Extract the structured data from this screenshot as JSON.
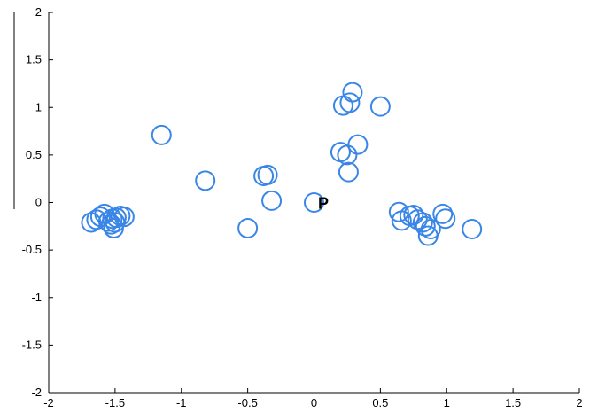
{
  "chart_data": {
    "type": "scatter",
    "title": "",
    "xlabel": "",
    "ylabel": "",
    "xlim": [
      -2,
      2
    ],
    "ylim": [
      -2,
      2
    ],
    "xticks": [
      -2,
      -1.5,
      -1,
      -0.5,
      0,
      0.5,
      1,
      1.5,
      2
    ],
    "yticks": [
      -2,
      -1.5,
      -1,
      -0.5,
      0,
      0.5,
      1,
      1.5,
      2
    ],
    "grid": false,
    "marker": "circle",
    "marker_color": "#3a86e6",
    "points": [
      [
        -1.68,
        -0.21
      ],
      [
        -1.64,
        -0.18
      ],
      [
        -1.61,
        -0.15
      ],
      [
        -1.58,
        -0.12
      ],
      [
        -1.55,
        -0.2
      ],
      [
        -1.53,
        -0.23
      ],
      [
        -1.52,
        -0.17
      ],
      [
        -1.51,
        -0.27
      ],
      [
        -1.5,
        -0.21
      ],
      [
        -1.49,
        -0.16
      ],
      [
        -1.46,
        -0.14
      ],
      [
        -1.43,
        -0.15
      ],
      [
        -1.15,
        0.71
      ],
      [
        -0.82,
        0.23
      ],
      [
        -0.5,
        -0.27
      ],
      [
        -0.38,
        0.28
      ],
      [
        -0.35,
        0.29
      ],
      [
        -0.32,
        0.02
      ],
      [
        0.2,
        0.53
      ],
      [
        0.22,
        1.02
      ],
      [
        0.25,
        0.5
      ],
      [
        0.26,
        0.32
      ],
      [
        0.27,
        1.05
      ],
      [
        0.29,
        1.16
      ],
      [
        0.33,
        0.61
      ],
      [
        0.5,
        1.01
      ],
      [
        0.64,
        -0.1
      ],
      [
        0.66,
        -0.19
      ],
      [
        0.72,
        -0.14
      ],
      [
        0.75,
        -0.13
      ],
      [
        0.78,
        -0.18
      ],
      [
        0.82,
        -0.21
      ],
      [
        0.84,
        -0.25
      ],
      [
        0.86,
        -0.35
      ],
      [
        0.88,
        -0.28
      ],
      [
        0.97,
        -0.12
      ],
      [
        0.99,
        -0.17
      ],
      [
        1.19,
        -0.28
      ],
      [
        0.0,
        0.0
      ]
    ],
    "annotations": [
      {
        "text": "P",
        "x": 0.07,
        "y": 0.0
      }
    ]
  }
}
